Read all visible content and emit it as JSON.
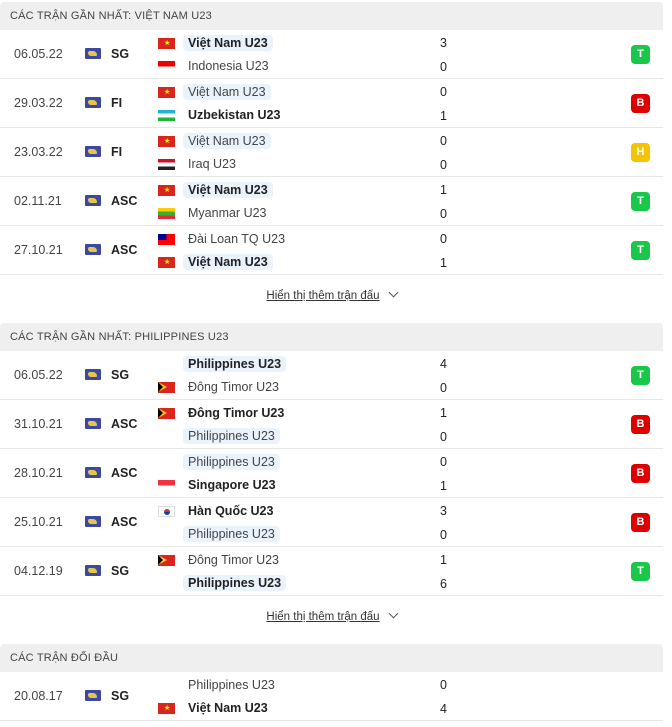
{
  "colors": {
    "win": "#19c84b",
    "loss": "#dd0000",
    "draw": "#f5c400",
    "highlight": "#eaf3fc"
  },
  "show_more": "Hiển thị thêm trận đấu",
  "sections": [
    {
      "title": "CÁC TRẬN GẦN NHẤT: VIỆT NAM U23",
      "show_more": true,
      "matches": [
        {
          "date": "06.05.22",
          "comp": "SG",
          "home": {
            "name": "Việt Nam U23",
            "flag": "vn",
            "bold": true,
            "hl": true
          },
          "away": {
            "name": "Indonesia U23",
            "flag": "id",
            "bold": false,
            "hl": false
          },
          "score": [
            "3",
            "0"
          ],
          "result": "T"
        },
        {
          "date": "29.03.22",
          "comp": "FI",
          "home": {
            "name": "Việt Nam U23",
            "flag": "vn",
            "bold": false,
            "hl": true
          },
          "away": {
            "name": "Uzbekistan U23",
            "flag": "uz",
            "bold": true,
            "hl": false
          },
          "score": [
            "0",
            "1"
          ],
          "result": "B"
        },
        {
          "date": "23.03.22",
          "comp": "FI",
          "home": {
            "name": "Việt Nam U23",
            "flag": "vn",
            "bold": false,
            "hl": true
          },
          "away": {
            "name": "Iraq U23",
            "flag": "iq",
            "bold": false,
            "hl": false
          },
          "score": [
            "0",
            "0"
          ],
          "result": "H"
        },
        {
          "date": "02.11.21",
          "comp": "ASC",
          "home": {
            "name": "Việt Nam U23",
            "flag": "vn",
            "bold": true,
            "hl": true
          },
          "away": {
            "name": "Myanmar U23",
            "flag": "mm",
            "bold": false,
            "hl": false
          },
          "score": [
            "1",
            "0"
          ],
          "result": "T"
        },
        {
          "date": "27.10.21",
          "comp": "ASC",
          "home": {
            "name": "Đài Loan TQ U23",
            "flag": "tw",
            "bold": false,
            "hl": false
          },
          "away": {
            "name": "Việt Nam U23",
            "flag": "vn",
            "bold": true,
            "hl": true
          },
          "score": [
            "0",
            "1"
          ],
          "result": "T"
        }
      ]
    },
    {
      "title": "CÁC TRẬN GẦN NHẤT: PHILIPPINES U23",
      "show_more": true,
      "matches": [
        {
          "date": "06.05.22",
          "comp": "SG",
          "home": {
            "name": "Philippines U23",
            "flag": "ph",
            "bold": true,
            "hl": true
          },
          "away": {
            "name": "Đông Timor U23",
            "flag": "tl",
            "bold": false,
            "hl": false
          },
          "score": [
            "4",
            "0"
          ],
          "result": "T"
        },
        {
          "date": "31.10.21",
          "comp": "ASC",
          "home": {
            "name": "Đông Timor U23",
            "flag": "tl",
            "bold": true,
            "hl": false
          },
          "away": {
            "name": "Philippines U23",
            "flag": "ph",
            "bold": false,
            "hl": true
          },
          "score": [
            "1",
            "0"
          ],
          "result": "B"
        },
        {
          "date": "28.10.21",
          "comp": "ASC",
          "home": {
            "name": "Philippines U23",
            "flag": "ph",
            "bold": false,
            "hl": true
          },
          "away": {
            "name": "Singapore U23",
            "flag": "sg",
            "bold": true,
            "hl": false
          },
          "score": [
            "0",
            "1"
          ],
          "result": "B"
        },
        {
          "date": "25.10.21",
          "comp": "ASC",
          "home": {
            "name": "Hàn Quốc U23",
            "flag": "kr",
            "bold": true,
            "hl": false
          },
          "away": {
            "name": "Philippines U23",
            "flag": "ph",
            "bold": false,
            "hl": true
          },
          "score": [
            "3",
            "0"
          ],
          "result": "B"
        },
        {
          "date": "04.12.19",
          "comp": "SG",
          "home": {
            "name": "Đông Timor U23",
            "flag": "tl",
            "bold": false,
            "hl": false
          },
          "away": {
            "name": "Philippines U23",
            "flag": "ph",
            "bold": true,
            "hl": true
          },
          "score": [
            "1",
            "6"
          ],
          "result": "T"
        }
      ]
    },
    {
      "title": "CÁC TRẬN ĐỐI ĐẦU",
      "show_more": false,
      "matches": [
        {
          "date": "20.08.17",
          "comp": "SG",
          "home": {
            "name": "Philippines U23",
            "flag": "ph",
            "bold": false,
            "hl": false
          },
          "away": {
            "name": "Việt Nam U23",
            "flag": "vn",
            "bold": true,
            "hl": false
          },
          "score": [
            "0",
            "4"
          ],
          "result": ""
        }
      ]
    }
  ]
}
